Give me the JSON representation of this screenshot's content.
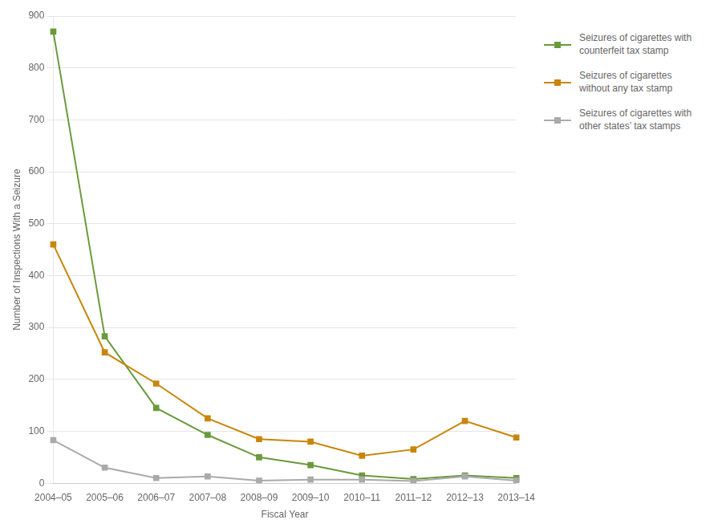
{
  "chart_data": {
    "type": "line",
    "categories": [
      "2004–05",
      "2005–06",
      "2006–07",
      "2007–08",
      "2008–09",
      "2009–10",
      "2010–11",
      "2011–12",
      "2012–13",
      "2013–14"
    ],
    "series": [
      {
        "name": "Seizures of cigarettes with\nother states’ tax stamps",
        "color": "#aaaaaa",
        "marker": "square",
        "values": [
          83,
          30,
          10,
          13,
          5,
          7,
          7,
          4,
          13,
          5
        ]
      },
      {
        "name": "Seizures of cigarettes\nwithout any tax stamp",
        "color": "#c8860a",
        "marker": "square",
        "values": [
          460,
          252,
          192,
          125,
          85,
          80,
          53,
          65,
          120,
          88
        ]
      },
      {
        "name": "Seizures of cigarettes with\ncounterfeit tax stamp",
        "color": "#6a9a3c",
        "marker": "square",
        "values": [
          870,
          283,
          145,
          93,
          50,
          35,
          15,
          8,
          15,
          10
        ]
      }
    ],
    "x_label": "Fiscal Year",
    "y_label": "Number of Inspections With a Seizure",
    "ylim": [
      0,
      900
    ],
    "yticks": [
      0,
      100,
      200,
      300,
      400,
      500,
      600,
      700,
      800,
      900
    ],
    "grid": true,
    "legend": "right"
  }
}
